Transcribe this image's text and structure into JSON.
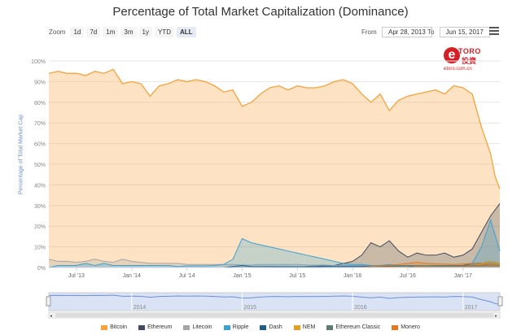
{
  "chart_data": {
    "type": "area",
    "title": "Percentage of Total Market Capitalization (Dominance)",
    "ylabel": "Percentage of Total Market Cap",
    "xlabel": "",
    "ylim": [
      0,
      100
    ],
    "xlim": [
      0,
      49
    ],
    "x_unit": "months since Apr 2013",
    "y_ticks": [
      "0%",
      "10%",
      "20%",
      "30%",
      "40%",
      "50%",
      "60%",
      "70%",
      "80%",
      "90%",
      "100%"
    ],
    "x_ticks": [
      {
        "label": "Jul '13",
        "x": 3
      },
      {
        "label": "Jan '14",
        "x": 9
      },
      {
        "label": "Jul '14",
        "x": 15
      },
      {
        "label": "Jan '15",
        "x": 21
      },
      {
        "label": "Jul '15",
        "x": 27
      },
      {
        "label": "Jan '16",
        "x": 33
      },
      {
        "label": "Jul '16",
        "x": 39
      },
      {
        "label": "Jan '17",
        "x": 45
      }
    ],
    "navigator_ticks": [
      {
        "label": "2014",
        "x": 9
      },
      {
        "label": "2015",
        "x": 21
      },
      {
        "label": "2016",
        "x": 33
      },
      {
        "label": "2017",
        "x": 45
      }
    ],
    "series": [
      {
        "name": "Bitcoin",
        "color": "#f7a23b",
        "points": [
          [
            0,
            94
          ],
          [
            1,
            95
          ],
          [
            2,
            94
          ],
          [
            3,
            94
          ],
          [
            4,
            93
          ],
          [
            5,
            95
          ],
          [
            6,
            94
          ],
          [
            7,
            96
          ],
          [
            8,
            89
          ],
          [
            9,
            90
          ],
          [
            10,
            89
          ],
          [
            11,
            83
          ],
          [
            12,
            88
          ],
          [
            13,
            89
          ],
          [
            14,
            91
          ],
          [
            15,
            90
          ],
          [
            16,
            91
          ],
          [
            17,
            90
          ],
          [
            18,
            88
          ],
          [
            19,
            85
          ],
          [
            20,
            86
          ],
          [
            21,
            78
          ],
          [
            22,
            80
          ],
          [
            23,
            84
          ],
          [
            24,
            87
          ],
          [
            25,
            88
          ],
          [
            26,
            86
          ],
          [
            27,
            88
          ],
          [
            28,
            87
          ],
          [
            29,
            87
          ],
          [
            30,
            88
          ],
          [
            31,
            90
          ],
          [
            32,
            91
          ],
          [
            33,
            89
          ],
          [
            34,
            84
          ],
          [
            35,
            80
          ],
          [
            36,
            84
          ],
          [
            37,
            76
          ],
          [
            38,
            81
          ],
          [
            39,
            83
          ],
          [
            40,
            84
          ],
          [
            41,
            85
          ],
          [
            42,
            86
          ],
          [
            43,
            84
          ],
          [
            44,
            88
          ],
          [
            45,
            87
          ],
          [
            46,
            84
          ],
          [
            47,
            68
          ],
          [
            48,
            55
          ],
          [
            48.5,
            44
          ],
          [
            49,
            38
          ]
        ]
      },
      {
        "name": "Ethereum",
        "color": "#434a5e",
        "points": [
          [
            0,
            0
          ],
          [
            27,
            0
          ],
          [
            28,
            0.5
          ],
          [
            31,
            1
          ],
          [
            33,
            3
          ],
          [
            34,
            6
          ],
          [
            35,
            12
          ],
          [
            36,
            10
          ],
          [
            37,
            13
          ],
          [
            38,
            8
          ],
          [
            39,
            5
          ],
          [
            40,
            7
          ],
          [
            41,
            6
          ],
          [
            42,
            6
          ],
          [
            43,
            7
          ],
          [
            44,
            5
          ],
          [
            45,
            6
          ],
          [
            46,
            9
          ],
          [
            47,
            17
          ],
          [
            48,
            25
          ],
          [
            49,
            31
          ]
        ]
      },
      {
        "name": "Litecoin",
        "color": "#a5a5a5",
        "points": [
          [
            0,
            4
          ],
          [
            1,
            3
          ],
          [
            2,
            3
          ],
          [
            3,
            2.5
          ],
          [
            4,
            3
          ],
          [
            5,
            4
          ],
          [
            6,
            3
          ],
          [
            7,
            2.5
          ],
          [
            8,
            4
          ],
          [
            9,
            3
          ],
          [
            10,
            2.5
          ],
          [
            11,
            2
          ],
          [
            12,
            2
          ],
          [
            13,
            2
          ],
          [
            14,
            2
          ],
          [
            15,
            1.5
          ],
          [
            16,
            1.5
          ],
          [
            17,
            1.5
          ],
          [
            18,
            1.5
          ],
          [
            19,
            1.5
          ],
          [
            20,
            1.5
          ],
          [
            21,
            1.2
          ],
          [
            22,
            1.2
          ],
          [
            23,
            1.5
          ],
          [
            24,
            1.5
          ],
          [
            25,
            1.5
          ],
          [
            26,
            1.5
          ],
          [
            27,
            1.5
          ],
          [
            28,
            1.2
          ],
          [
            29,
            1.2
          ],
          [
            30,
            1.2
          ],
          [
            31,
            1
          ],
          [
            32,
            1
          ],
          [
            33,
            1
          ],
          [
            34,
            1
          ],
          [
            35,
            0.8
          ],
          [
            36,
            0.8
          ],
          [
            37,
            0.8
          ],
          [
            38,
            0.8
          ],
          [
            39,
            0.8
          ],
          [
            40,
            0.8
          ],
          [
            41,
            0.8
          ],
          [
            42,
            0.8
          ],
          [
            43,
            0.8
          ],
          [
            44,
            0.8
          ],
          [
            45,
            1
          ],
          [
            46,
            1
          ],
          [
            47,
            2
          ],
          [
            48,
            1.8
          ],
          [
            49,
            1.5
          ]
        ]
      },
      {
        "name": "Ripple",
        "color": "#3aa1d4",
        "points": [
          [
            0,
            0
          ],
          [
            1,
            1
          ],
          [
            2,
            1
          ],
          [
            3,
            1
          ],
          [
            4,
            2
          ],
          [
            5,
            1
          ],
          [
            6,
            2
          ],
          [
            7,
            1
          ],
          [
            8,
            1
          ],
          [
            9,
            1
          ],
          [
            10,
            1
          ],
          [
            11,
            1
          ],
          [
            12,
            1
          ],
          [
            13,
            1
          ],
          [
            14,
            0.5
          ],
          [
            15,
            0.8
          ],
          [
            16,
            0.8
          ],
          [
            17,
            0.8
          ],
          [
            18,
            1
          ],
          [
            19,
            1.5
          ],
          [
            20,
            4
          ],
          [
            21,
            14
          ],
          [
            22,
            12
          ],
          [
            23,
            11
          ],
          [
            24,
            10
          ],
          [
            25,
            9
          ],
          [
            26,
            8
          ],
          [
            27,
            7
          ],
          [
            28,
            6
          ],
          [
            29,
            5
          ],
          [
            30,
            4
          ],
          [
            31,
            3
          ],
          [
            32,
            2
          ],
          [
            33,
            1.5
          ],
          [
            34,
            1.5
          ],
          [
            35,
            1
          ],
          [
            36,
            1
          ],
          [
            37,
            1.5
          ],
          [
            38,
            1
          ],
          [
            39,
            1
          ],
          [
            40,
            1
          ],
          [
            41,
            1
          ],
          [
            42,
            1
          ],
          [
            43,
            1
          ],
          [
            44,
            1
          ],
          [
            45,
            1
          ],
          [
            46,
            2
          ],
          [
            47,
            10
          ],
          [
            48,
            23
          ],
          [
            49,
            8
          ]
        ]
      },
      {
        "name": "Dash",
        "color": "#1c5f89",
        "points": [
          [
            0,
            0
          ],
          [
            19,
            0
          ],
          [
            20,
            0.5
          ],
          [
            21,
            1
          ],
          [
            22,
            0.5
          ],
          [
            29,
            0.3
          ],
          [
            30,
            0.5
          ],
          [
            33,
            0.5
          ],
          [
            40,
            0.8
          ],
          [
            44,
            0.8
          ],
          [
            45,
            1
          ],
          [
            46,
            2
          ],
          [
            47,
            2
          ],
          [
            48,
            3
          ],
          [
            49,
            2
          ]
        ]
      },
      {
        "name": "NEM",
        "color": "#e6a01f",
        "points": [
          [
            0,
            0
          ],
          [
            33,
            0
          ],
          [
            40,
            0.3
          ],
          [
            44,
            0.4
          ],
          [
            46,
            0.5
          ],
          [
            47,
            2
          ],
          [
            48,
            3
          ],
          [
            49,
            2
          ]
        ]
      },
      {
        "name": "Ethereum Classic",
        "color": "#5f7b71",
        "points": [
          [
            0,
            0
          ],
          [
            39,
            0
          ],
          [
            40,
            1
          ],
          [
            41,
            0.8
          ],
          [
            42,
            0.6
          ],
          [
            44,
            0.6
          ],
          [
            46,
            0.8
          ],
          [
            47,
            1
          ],
          [
            48,
            1.5
          ],
          [
            49,
            1
          ]
        ]
      },
      {
        "name": "Monero",
        "color": "#e3791f",
        "points": [
          [
            0,
            0
          ],
          [
            34,
            0
          ],
          [
            35,
            0.5
          ],
          [
            38,
            1.5
          ],
          [
            40,
            2.5
          ],
          [
            41,
            2
          ],
          [
            42,
            1.8
          ],
          [
            44,
            1.5
          ],
          [
            46,
            2
          ],
          [
            47,
            1.8
          ],
          [
            48,
            1.5
          ],
          [
            49,
            1.2
          ]
        ]
      }
    ]
  },
  "zoom": {
    "label": "Zoom",
    "buttons": [
      "1d",
      "7d",
      "1m",
      "3m",
      "1y",
      "YTD",
      "ALL"
    ],
    "active": "ALL"
  },
  "range": {
    "from_label": "From",
    "from_value": "Apr 28, 2013",
    "to_label": "To",
    "to_value": "Jun 15, 2017"
  },
  "logo": {
    "word": "TORO",
    "letter": "e",
    "cn": "投資",
    "site": "etoro.com.cn"
  },
  "colors": {
    "grid": "#e6e6e6",
    "ylabel": "#6d8fc7",
    "navigator_fill": "#d9e3f5",
    "navigator_line": "#6f8fd4"
  }
}
